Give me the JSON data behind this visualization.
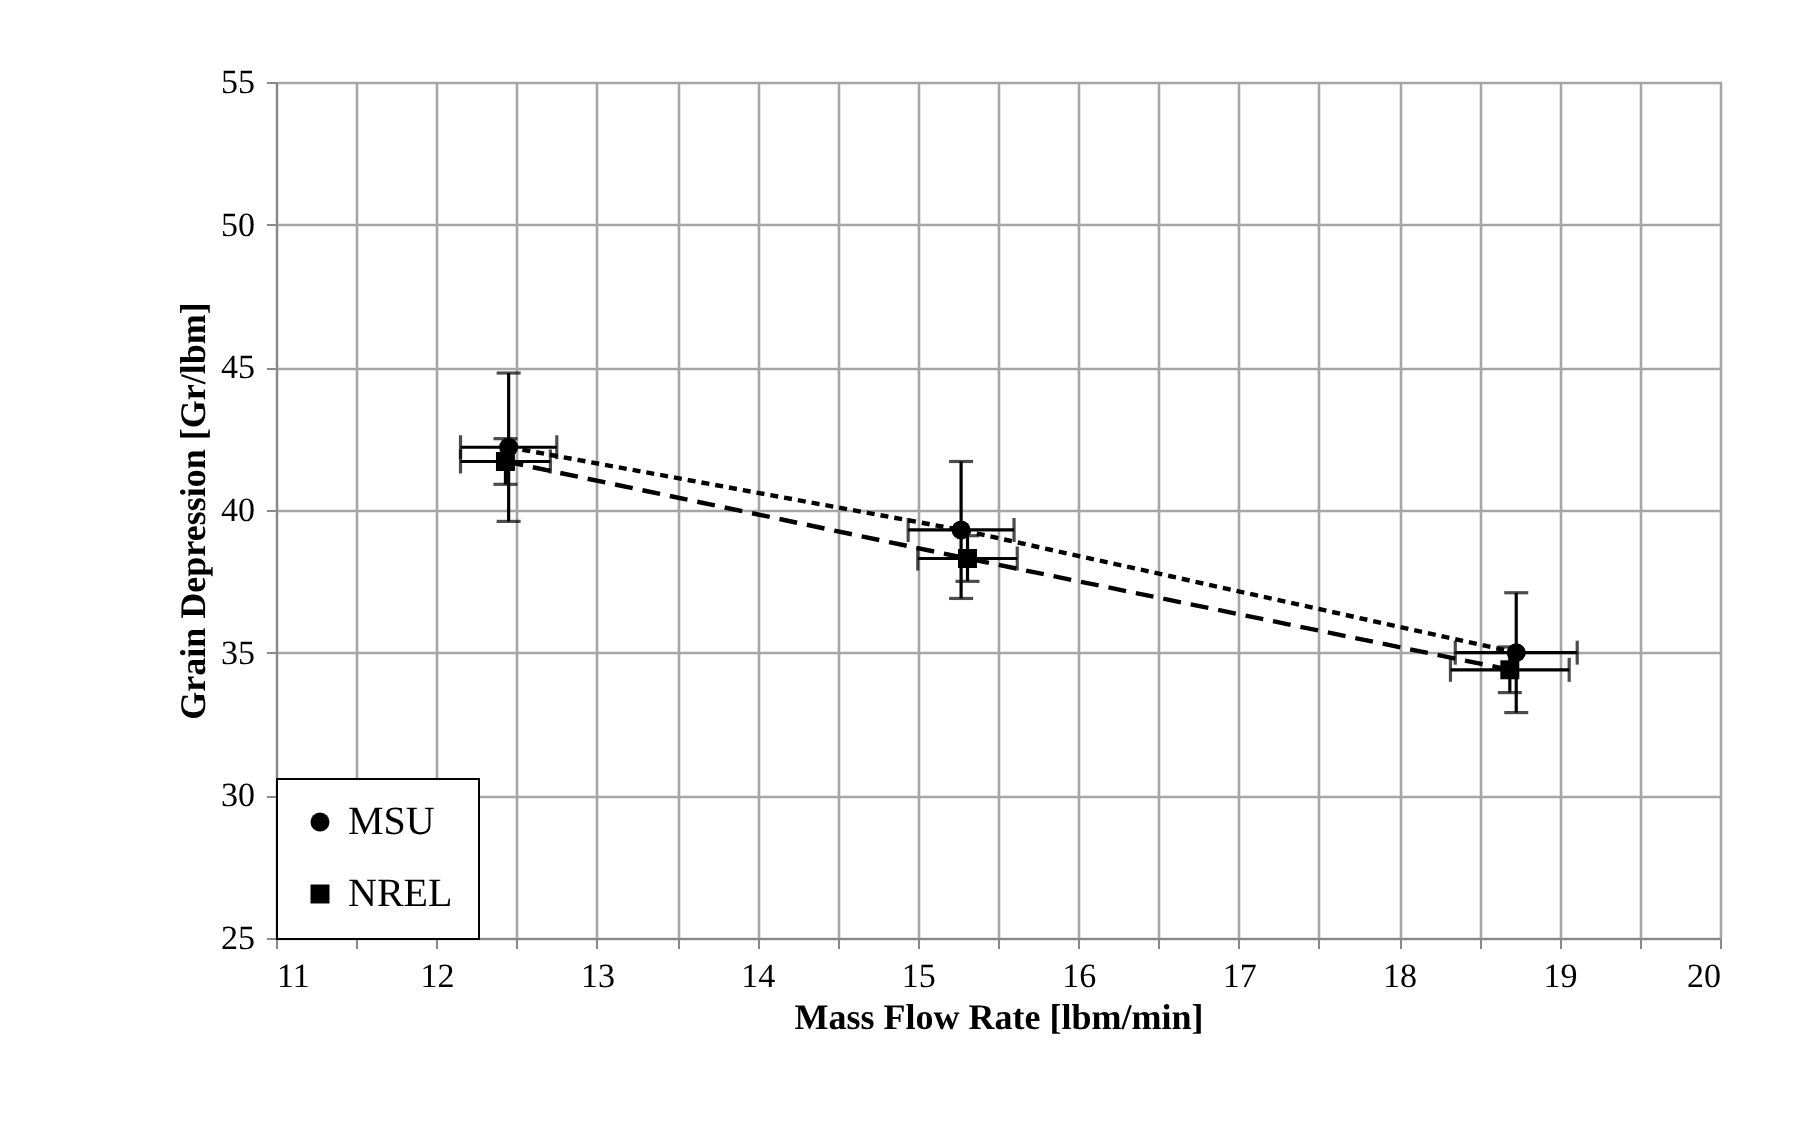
{
  "chart_data": {
    "type": "line",
    "xlabel": "Mass Flow Rate [lbm/min]",
    "ylabel": "Grain Depression [Gr/lbm]",
    "xlim": [
      11,
      20
    ],
    "ylim": [
      25,
      55
    ],
    "xticks": [
      11,
      {
        "value": 11.5,
        "label": null
      },
      12,
      {
        "value": 12.5,
        "label": null
      },
      13,
      {
        "value": 13.5,
        "label": null
      },
      14,
      {
        "value": 14.5,
        "label": null
      },
      15,
      {
        "value": 15.5,
        "label": null
      },
      16,
      {
        "value": 16.5,
        "label": null
      },
      17,
      {
        "value": 17.5,
        "label": null
      },
      18,
      {
        "value": 18.5,
        "label": null
      },
      19,
      {
        "value": 19.5,
        "label": null
      },
      20
    ],
    "yticks": [
      25,
      30,
      35,
      40,
      45,
      50,
      55
    ],
    "grid": true,
    "legend": "bottom left",
    "series": [
      {
        "name": "MSU",
        "color": "#000000",
        "marker": "circle",
        "line_style": "dotted",
        "x": [
          12.45,
          15.27,
          18.73
        ],
        "values": [
          42.2,
          39.3,
          35.0
        ],
        "errors": [
          2.6,
          2.4,
          2.1
        ],
        "xerrors": [
          0.3,
          0.33,
          0.38
        ]
      },
      {
        "name": "NREL",
        "color": "#000000",
        "marker": "square",
        "line_style": "dashed",
        "x": [
          12.43,
          15.31,
          18.69
        ],
        "values": [
          41.7,
          38.3,
          34.4
        ],
        "errors": [
          0.8,
          0.8,
          0.8
        ],
        "xerrors": [
          0.28,
          0.31,
          0.37
        ]
      }
    ]
  }
}
